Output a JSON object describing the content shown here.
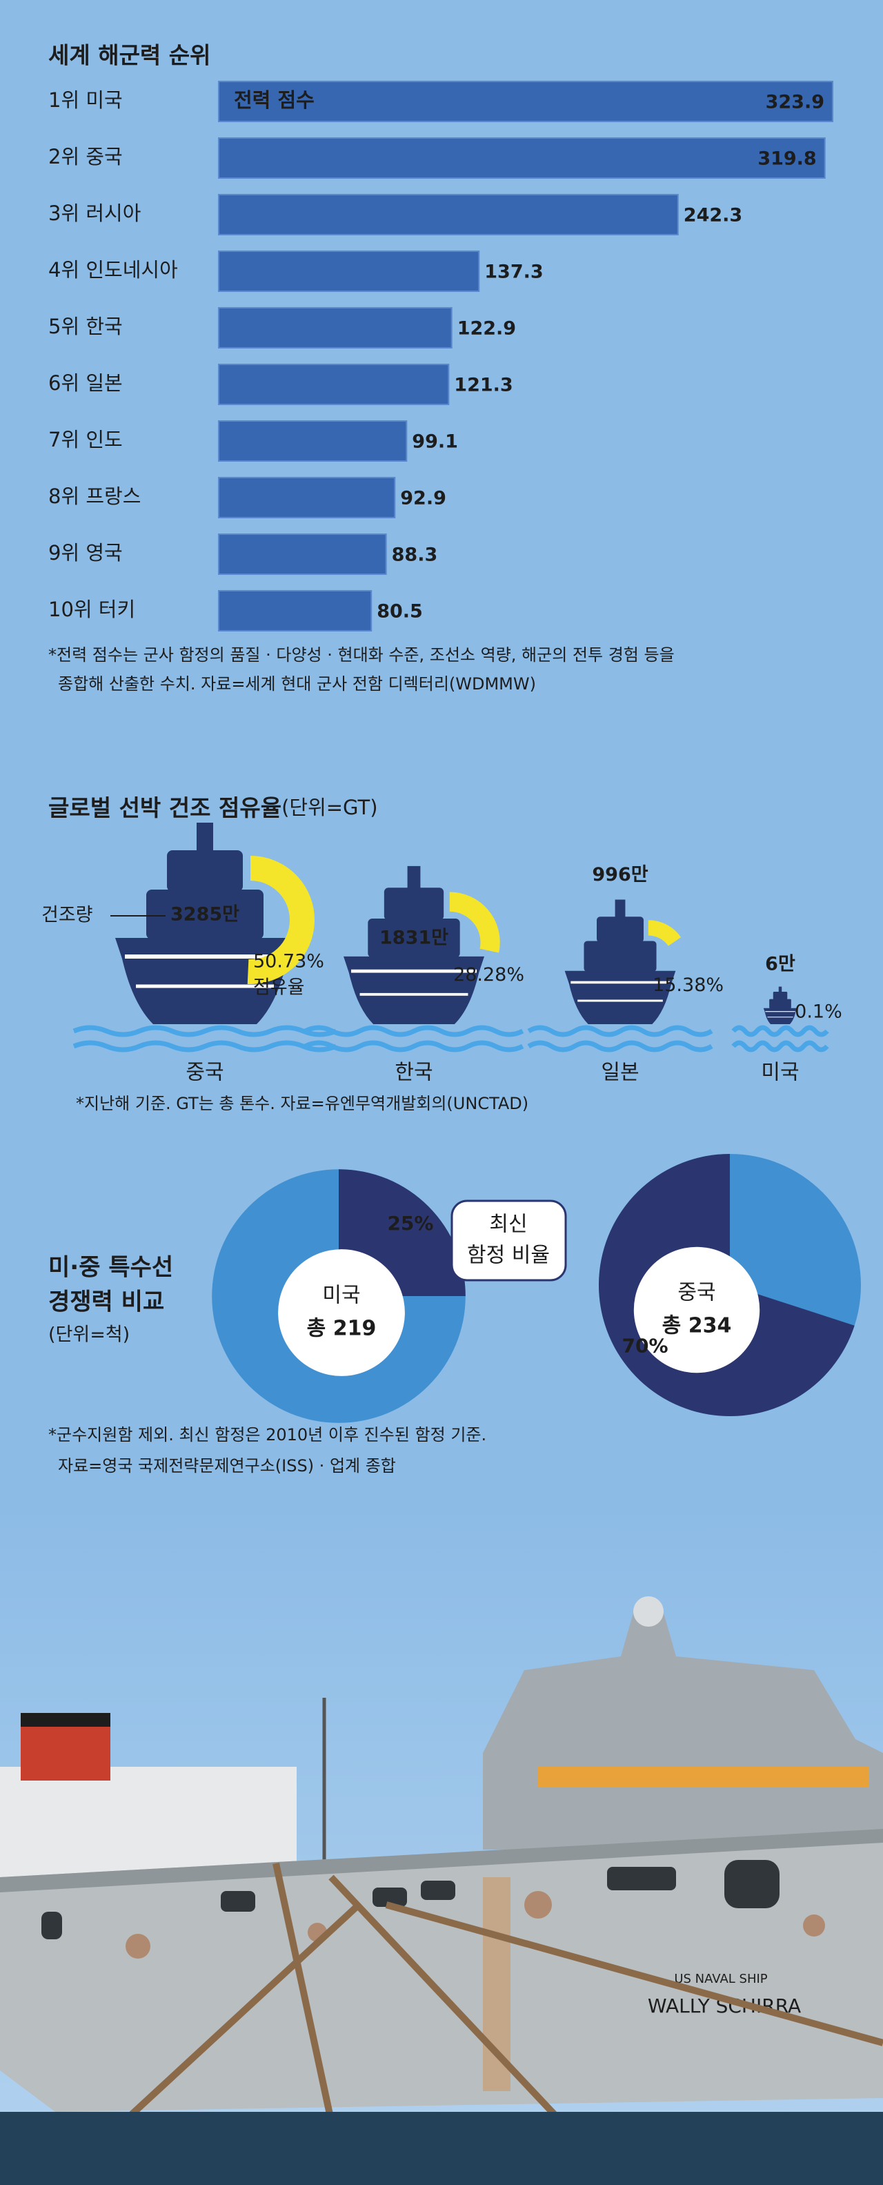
{
  "chart_data": [
    {
      "type": "bar",
      "orientation": "horizontal",
      "title": "세계 해군력 순위",
      "categories": [
        "1위 미국",
        "2위 중국",
        "3위 러시아",
        "4위 인도네시아",
        "5위 한국",
        "6위 일본",
        "7위 인도",
        "8위 프랑스",
        "9위 영국",
        "10위 터키"
      ],
      "series": [
        {
          "name": "전력 점수",
          "color": "#3767b1",
          "values": [
            323.9,
            319.8,
            242.3,
            137.3,
            122.9,
            121.3,
            99.1,
            92.9,
            88.3,
            80.5
          ]
        }
      ],
      "xlim": [
        0,
        323.9
      ],
      "notes": [
        "*전력 점수는 군사 함정의 품질 · 다양성 · 현대화 수준, 조선소 역량, 해군의 전투 경험 등을",
        "종합해 산출한 수치. 자료=세계 현대 군사 전함 디렉터리(WDMMW)"
      ]
    },
    {
      "type": "ship",
      "title": "글로벌 선박 건조 점유율",
      "subtitle": "(단위=GT)",
      "categories": [
        "중국",
        "한국",
        "일본",
        "미국"
      ],
      "series": [
        {
          "name": "건조량",
          "color": "#263a70",
          "values": [
            3285,
            1831,
            996,
            6
          ],
          "value_labels": [
            "3285만",
            "1831만",
            "996만",
            "6만"
          ]
        },
        {
          "name": "점유율",
          "color": "#f4e52b",
          "values": [
            50.73,
            28.28,
            15.38,
            0.1
          ],
          "value_labels": [
            "50.73%",
            "28.28%",
            "15.38%",
            "0.1%"
          ]
        }
      ],
      "notes": [
        "*지난해 기준. GT는 총 톤수. 자료=유엔무역개발회의(UNCTAD)"
      ]
    },
    {
      "type": "donut",
      "title": [
        "미·중 특수선",
        "경쟁력 비교"
      ],
      "subtitle": "(단위=척)",
      "annotation": [
        "최신",
        "함정 비율"
      ],
      "color": "#2b3670",
      "rest_color": "#4191d2",
      "series": [
        {
          "name": "미국",
          "values": [
            25
          ],
          "value_labels": [
            "25%"
          ],
          "total": 219,
          "total_label": "총 219"
        },
        {
          "name": "중국",
          "values": [
            70
          ],
          "value_labels": [
            "70%"
          ],
          "total": 234,
          "total_label": "총 234"
        }
      ],
      "notes": [
        "*군수지원함 제외. 최신 함정은 2010년 이후 진수된 함정 기준.",
        "자료=영국 국제전략문제연구소(ISS) · 업계 종합"
      ]
    }
  ],
  "photo": {
    "hull_text": [
      "US NAVAL SHIP",
      "WALLY SCHIRRA"
    ]
  }
}
